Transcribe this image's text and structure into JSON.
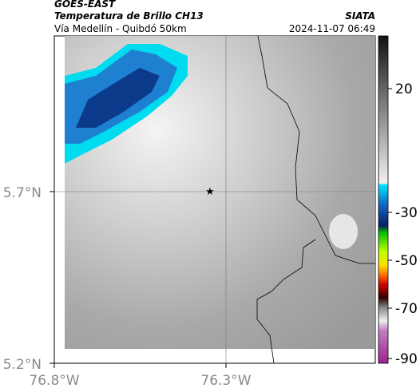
{
  "header": {
    "title": "GOES-EAST",
    "subtitle": "Temperatura de Brillo CH13",
    "location": "Vía Medellín - Quibdó 50km",
    "source": "SIATA",
    "timestamp": "2024-11-07 06:49"
  },
  "map": {
    "lat_labels": [
      "5.7°N",
      "5.2°N"
    ],
    "lon_labels": [
      "76.8°W",
      "76.3°W"
    ]
  },
  "colorbar": {
    "ticks": [
      20,
      -30,
      -50,
      -70,
      -90
    ]
  }
}
